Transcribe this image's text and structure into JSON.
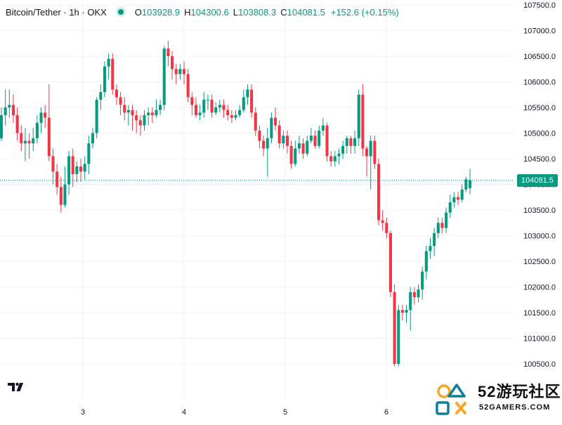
{
  "legend": {
    "symbol": "Bitcoin/Tether · 1h · OKX",
    "open_label": "O",
    "open": "103928.9",
    "high_label": "H",
    "high": "104300.6",
    "low_label": "L",
    "low": "103808.3",
    "close_label": "C",
    "close": "104081.5",
    "change": "+152.6 (+0.15%)"
  },
  "price_tag": "104081.5",
  "watermark": {
    "title": "52游玩社区",
    "subtitle": "52GAMERS.COM"
  },
  "colors": {
    "up": "#089981",
    "down": "#f23645",
    "grid": "#f0f3fa",
    "axis_text": "#131722"
  },
  "chart_data": {
    "type": "candlestick",
    "title": "Bitcoin/Tether · 1h · OKX",
    "xlabel": "",
    "ylabel": "",
    "ylim": [
      100100,
      107550
    ],
    "x_ticks": [
      "3",
      "4",
      "5",
      "6"
    ],
    "y_ticks": [
      "100500.0",
      "101000.0",
      "101500.0",
      "102000.0",
      "102500.0",
      "103000.0",
      "103500.0",
      "104000.0",
      "104500.0",
      "105000.0",
      "105500.0",
      "106000.0",
      "106500.0",
      "107000.0",
      "107500.0"
    ],
    "last_price": 104081.5,
    "grid": true,
    "candles": [
      [
        104900,
        105350,
        105500,
        104850
      ],
      [
        105350,
        105500,
        105850,
        105150
      ],
      [
        105500,
        105550,
        105850,
        105300
      ],
      [
        105550,
        105350,
        105750,
        105200
      ],
      [
        105350,
        105000,
        105500,
        104850
      ],
      [
        105000,
        104800,
        105150,
        104650
      ],
      [
        104800,
        104850,
        105100,
        104450
      ],
      [
        104850,
        104800,
        105000,
        104500
      ],
      [
        104800,
        104900,
        105100,
        104650
      ],
      [
        104900,
        105200,
        105350,
        104800
      ],
      [
        105200,
        105400,
        105500,
        105000
      ],
      [
        105400,
        105300,
        105550,
        105100
      ],
      [
        105300,
        104550,
        105950,
        104450
      ],
      [
        104550,
        104250,
        104700,
        104000
      ],
      [
        104250,
        103950,
        104400,
        103800
      ],
      [
        103950,
        103600,
        104150,
        103450
      ],
      [
        103600,
        104000,
        104350,
        103550
      ],
      [
        104000,
        104550,
        104650,
        103800
      ],
      [
        104550,
        104200,
        104700,
        103950
      ],
      [
        104200,
        104350,
        104450,
        104050
      ],
      [
        104350,
        104250,
        104500,
        104050
      ],
      [
        104250,
        104400,
        104550,
        104100
      ],
      [
        104400,
        104800,
        104950,
        104200
      ],
      [
        104800,
        105000,
        105100,
        104700
      ],
      [
        105000,
        105650,
        105700,
        104900
      ],
      [
        105650,
        105800,
        105950,
        105450
      ],
      [
        105800,
        106300,
        106400,
        105700
      ],
      [
        106300,
        106450,
        106550,
        106050
      ],
      [
        106450,
        105850,
        106550,
        105750
      ],
      [
        105850,
        105700,
        105950,
        105550
      ],
      [
        105700,
        105550,
        105800,
        105350
      ],
      [
        105550,
        105400,
        105700,
        105250
      ],
      [
        105400,
        105450,
        105550,
        105150
      ],
      [
        105450,
        105350,
        105550,
        105050
      ],
      [
        105350,
        105250,
        105450,
        105000
      ],
      [
        105250,
        105150,
        105350,
        104950
      ],
      [
        105150,
        105350,
        105450,
        105050
      ],
      [
        105350,
        105400,
        105500,
        105150
      ],
      [
        105400,
        105350,
        105500,
        105200
      ],
      [
        105350,
        105450,
        105650,
        105300
      ],
      [
        105450,
        105550,
        105650,
        105350
      ],
      [
        105550,
        106650,
        106700,
        105450
      ],
      [
        106650,
        106500,
        106800,
        106300
      ],
      [
        106500,
        106250,
        106600,
        106050
      ],
      [
        106250,
        106150,
        106350,
        105950
      ],
      [
        106150,
        106250,
        106350,
        106050
      ],
      [
        106250,
        106150,
        106400,
        105950
      ],
      [
        106150,
        105700,
        106250,
        105600
      ],
      [
        105700,
        105550,
        105800,
        105350
      ],
      [
        105550,
        105350,
        105700,
        105300
      ],
      [
        105350,
        105400,
        105550,
        105250
      ],
      [
        105400,
        105650,
        105800,
        105300
      ],
      [
        105650,
        105650,
        105750,
        105450
      ],
      [
        105650,
        105400,
        105750,
        105300
      ],
      [
        105400,
        105500,
        105600,
        105350
      ],
      [
        105500,
        105550,
        105650,
        105400
      ],
      [
        105550,
        105450,
        105650,
        105300
      ],
      [
        105450,
        105350,
        105550,
        105250
      ],
      [
        105350,
        105300,
        105450,
        105200
      ],
      [
        105300,
        105350,
        105450,
        105250
      ],
      [
        105350,
        105450,
        105550,
        105300
      ],
      [
        105450,
        105700,
        105850,
        105400
      ],
      [
        105700,
        105850,
        105950,
        105550
      ],
      [
        105850,
        105400,
        105950,
        105300
      ],
      [
        105400,
        105050,
        105500,
        104950
      ],
      [
        105050,
        104850,
        105150,
        104700
      ],
      [
        104850,
        104700,
        104950,
        104550
      ],
      [
        104700,
        104900,
        105100,
        104150
      ],
      [
        104900,
        105300,
        105400,
        104800
      ],
      [
        105300,
        105150,
        105500,
        105050
      ],
      [
        105150,
        104800,
        105250,
        104700
      ],
      [
        104800,
        104950,
        105050,
        104700
      ],
      [
        104950,
        104750,
        105050,
        104600
      ],
      [
        104750,
        104400,
        104850,
        104300
      ],
      [
        104400,
        104700,
        104850,
        104350
      ],
      [
        104700,
        104800,
        104950,
        104600
      ],
      [
        104800,
        104600,
        104900,
        104500
      ],
      [
        104600,
        104850,
        104950,
        104550
      ],
      [
        104850,
        104950,
        105100,
        104800
      ],
      [
        104950,
        104750,
        105050,
        104700
      ],
      [
        104750,
        105050,
        105150,
        104700
      ],
      [
        105050,
        105150,
        105300,
        104950
      ],
      [
        105150,
        104550,
        105200,
        104450
      ],
      [
        104550,
        104450,
        104650,
        104350
      ],
      [
        104450,
        104550,
        104650,
        104350
      ],
      [
        104550,
        104600,
        104700,
        104400
      ],
      [
        104600,
        104750,
        104850,
        104500
      ],
      [
        104750,
        104900,
        104950,
        104600
      ],
      [
        104900,
        104750,
        104950,
        104600
      ],
      [
        104750,
        104900,
        105050,
        104600
      ],
      [
        104900,
        105750,
        105850,
        104750
      ],
      [
        105750,
        104700,
        105950,
        104550
      ],
      [
        104700,
        104550,
        104750,
        104150
      ],
      [
        104550,
        104850,
        104950,
        103900
      ],
      [
        104850,
        104400,
        104950,
        104300
      ],
      [
        104400,
        103300,
        104500,
        103200
      ],
      [
        103300,
        103250,
        103500,
        103100
      ],
      [
        103250,
        103050,
        103350,
        102950
      ],
      [
        103050,
        101900,
        103100,
        101800
      ],
      [
        101900,
        100500,
        102050,
        100450
      ],
      [
        100500,
        101550,
        101650,
        100450
      ],
      [
        101550,
        101500,
        101650,
        101350
      ],
      [
        101500,
        101550,
        101650,
        101300
      ],
      [
        101550,
        101900,
        102000,
        101150
      ],
      [
        101900,
        101800,
        102000,
        101650
      ],
      [
        101800,
        101950,
        102050,
        101700
      ],
      [
        101950,
        102300,
        102400,
        101750
      ],
      [
        102300,
        102700,
        102800,
        102150
      ],
      [
        102700,
        102800,
        102950,
        102550
      ],
      [
        102800,
        103050,
        103150,
        102600
      ],
      [
        103050,
        103250,
        103350,
        102950
      ],
      [
        103250,
        103150,
        103350,
        103050
      ],
      [
        103150,
        103450,
        103550,
        103050
      ],
      [
        103450,
        103650,
        103800,
        103350
      ],
      [
        103650,
        103750,
        103850,
        103550
      ],
      [
        103750,
        103700,
        103850,
        103600
      ],
      [
        103700,
        103900,
        104000,
        103650
      ],
      [
        103900,
        104100,
        104150,
        103850
      ],
      [
        103928.9,
        104081.5,
        104300.6,
        103808.3
      ]
    ]
  }
}
